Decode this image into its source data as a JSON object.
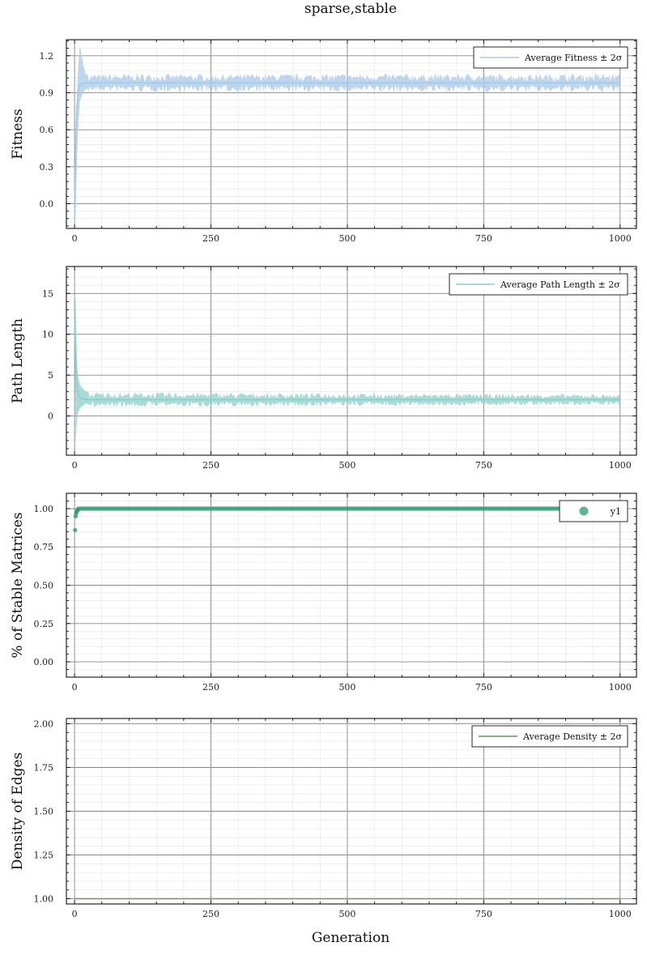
{
  "chart_data": {
    "title": "sparse,stable",
    "xlabel": "Generation",
    "panels": [
      {
        "id": "fitness",
        "type": "line",
        "ylabel": "Fitness",
        "xlim": [
          -15,
          1030
        ],
        "ylim": [
          -0.2,
          1.33
        ],
        "xticks": [
          0,
          250,
          500,
          750,
          1000
        ],
        "yticks": [
          0.0,
          0.3,
          0.6,
          0.9,
          1.2
        ],
        "ytick_labels": [
          "0.0",
          "0.3",
          "0.6",
          "0.9",
          "1.2"
        ],
        "legend": "top-right",
        "grid": true,
        "series": [
          {
            "name": "Average Fitness ± 2σ",
            "color": "#a8c8e8",
            "band_color": "#a8c8e8",
            "mean_x": [
              0,
              1,
              2,
              3,
              4,
              6,
              8,
              10,
              12,
              15,
              20,
              30,
              1000
            ],
            "mean_y": [
              -0.15,
              0.2,
              0.45,
              0.65,
              0.78,
              0.88,
              0.93,
              0.96,
              0.97,
              0.98,
              0.98,
              0.98,
              0.98
            ],
            "band_lower_x": [
              0,
              2,
              4,
              6,
              8,
              10,
              15,
              20,
              1000
            ],
            "band_lower_y": [
              -0.2,
              -0.05,
              0.3,
              0.55,
              0.72,
              0.83,
              0.9,
              0.93,
              0.93
            ],
            "band_upper_x": [
              0,
              2,
              4,
              6,
              8,
              10,
              15,
              20,
              1000
            ],
            "band_upper_y": [
              0.1,
              0.55,
              0.85,
              1.05,
              1.2,
              1.28,
              1.15,
              1.05,
              1.05
            ]
          }
        ]
      },
      {
        "id": "path-length",
        "type": "line",
        "ylabel": "Path Length",
        "xlim": [
          -15,
          1030
        ],
        "ylim": [
          -4.8,
          18.3
        ],
        "xticks": [
          0,
          250,
          500,
          750,
          1000
        ],
        "yticks": [
          0,
          5,
          10,
          15
        ],
        "ytick_labels": [
          "0",
          "5",
          "10",
          "15"
        ],
        "legend": "top-right",
        "grid": true,
        "series": [
          {
            "name": "Average Path Length ± 2σ",
            "color": "#8ccfc9",
            "band_color": "#8ccfc9",
            "mean_x": [
              0,
              1,
              2,
              3,
              5,
              8,
              10,
              15,
              20,
              1000
            ],
            "mean_y": [
              12.5,
              9.5,
              7.0,
              5.0,
              3.2,
              2.4,
              2.2,
              2.1,
              2.0,
              2.0
            ],
            "band_lower_x": [
              0,
              2,
              4,
              6,
              10,
              20,
              1000
            ],
            "band_lower_y": [
              9.5,
              -3.5,
              -1.0,
              0.3,
              1.0,
              1.5,
              1.5
            ],
            "band_upper_x": [
              0,
              2,
              4,
              6,
              10,
              20,
              1000
            ],
            "band_upper_y": [
              15.0,
              14.0,
              7.5,
              5.0,
              3.8,
              3.0,
              2.6
            ]
          }
        ]
      },
      {
        "id": "stable-matrices",
        "type": "scatter",
        "ylabel": "% of Stable Matrices",
        "xlim": [
          -15,
          1030
        ],
        "ylim": [
          -0.1,
          1.1
        ],
        "xticks": [
          0,
          250,
          500,
          750,
          1000
        ],
        "yticks": [
          0.0,
          0.25,
          0.5,
          0.75,
          1.0
        ],
        "ytick_labels": [
          "0.00",
          "0.25",
          "0.50",
          "0.75",
          "1.00"
        ],
        "legend": "top-right",
        "grid": true,
        "series": [
          {
            "name": "y1",
            "color": "#2e9a72",
            "points": [
              [
                1,
                0.86
              ],
              [
                2,
                0.95
              ],
              [
                3,
                0.97
              ],
              [
                4,
                0.98
              ],
              [
                5,
                0.99
              ],
              [
                6,
                0.99
              ]
            ],
            "flat_from": 7,
            "flat_to": 1000,
            "flat_value": 1.0
          }
        ]
      },
      {
        "id": "density",
        "type": "line",
        "ylabel": "Density of Edges",
        "xlim": [
          -15,
          1030
        ],
        "ylim": [
          0.97,
          2.03
        ],
        "xticks": [
          0,
          250,
          500,
          750,
          1000
        ],
        "yticks": [
          1.0,
          1.25,
          1.5,
          1.75,
          2.0
        ],
        "ytick_labels": [
          "1.00",
          "1.25",
          "1.50",
          "1.75",
          "2.00"
        ],
        "legend": "top-right",
        "grid": true,
        "series": [
          {
            "name": "Average Density ± 2σ",
            "color": "#5a9e5a",
            "mean_x": [
              0,
              1000
            ],
            "mean_y": [
              1.0,
              1.0
            ]
          }
        ]
      }
    ]
  }
}
